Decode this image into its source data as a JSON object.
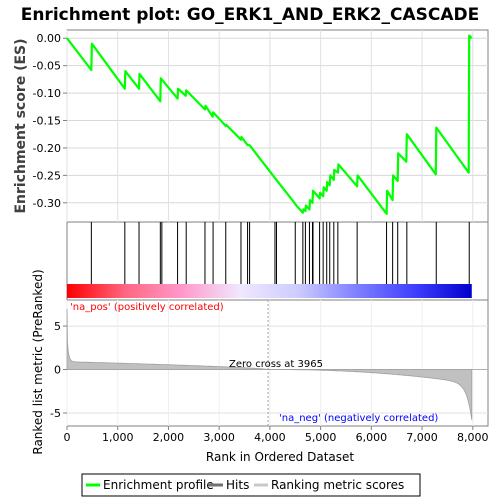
{
  "chart_data": {
    "type": "line",
    "title": "Enrichment plot: GO_ERK1_AND_ERK2_CASCADE",
    "panels": {
      "enrichment": {
        "ylabel": "Enrichment score (ES)",
        "ylim": [
          -0.335,
          0.015
        ],
        "yticks": [
          "0.00",
          "-0.05",
          "-0.10",
          "-0.15",
          "-0.20",
          "-0.25",
          "-0.30"
        ],
        "ytick_values": [
          0.0,
          -0.05,
          -0.1,
          -0.15,
          -0.2,
          -0.25,
          -0.3
        ],
        "series_color": "#00ff00",
        "points": [
          [
            0,
            0.0
          ],
          [
            480,
            -0.058
          ],
          [
            490,
            -0.01
          ],
          [
            1140,
            -0.092
          ],
          [
            1150,
            -0.06
          ],
          [
            1420,
            -0.092
          ],
          [
            1430,
            -0.065
          ],
          [
            1840,
            -0.115
          ],
          [
            1850,
            -0.073
          ],
          [
            2180,
            -0.11
          ],
          [
            2190,
            -0.092
          ],
          [
            2340,
            -0.105
          ],
          [
            2350,
            -0.095
          ],
          [
            2720,
            -0.13
          ],
          [
            2730,
            -0.123
          ],
          [
            2870,
            -0.143
          ],
          [
            2880,
            -0.135
          ],
          [
            3130,
            -0.16
          ],
          [
            3140,
            -0.158
          ],
          [
            3430,
            -0.185
          ],
          [
            3440,
            -0.18
          ],
          [
            3560,
            -0.195
          ],
          [
            3600,
            -0.195
          ],
          [
            4100,
            -0.255
          ],
          [
            4500,
            -0.302
          ],
          [
            4520,
            -0.305
          ],
          [
            4650,
            -0.318
          ],
          [
            4660,
            -0.312
          ],
          [
            4700,
            -0.315
          ],
          [
            4710,
            -0.305
          ],
          [
            4780,
            -0.312
          ],
          [
            4790,
            -0.295
          ],
          [
            4840,
            -0.3
          ],
          [
            4850,
            -0.278
          ],
          [
            4980,
            -0.292
          ],
          [
            4990,
            -0.282
          ],
          [
            5050,
            -0.288
          ],
          [
            5060,
            -0.272
          ],
          [
            5120,
            -0.278
          ],
          [
            5130,
            -0.262
          ],
          [
            5180,
            -0.268
          ],
          [
            5190,
            -0.25
          ],
          [
            5260,
            -0.258
          ],
          [
            5270,
            -0.24
          ],
          [
            5340,
            -0.245
          ],
          [
            5350,
            -0.23
          ],
          [
            5720,
            -0.27
          ],
          [
            5730,
            -0.25
          ],
          [
            6300,
            -0.32
          ],
          [
            6310,
            -0.278
          ],
          [
            6420,
            -0.295
          ],
          [
            6430,
            -0.25
          ],
          [
            6520,
            -0.26
          ],
          [
            6530,
            -0.21
          ],
          [
            6690,
            -0.225
          ],
          [
            6700,
            -0.175
          ],
          [
            7270,
            -0.248
          ],
          [
            7280,
            -0.163
          ],
          [
            7920,
            -0.245
          ],
          [
            7930,
            0.005
          ],
          [
            7980,
            0.0
          ]
        ]
      },
      "hits": {
        "positions": [
          480,
          1140,
          1420,
          1840,
          1870,
          2180,
          2350,
          2720,
          2880,
          3130,
          3430,
          3560,
          3600,
          4100,
          4130,
          4500,
          4650,
          4700,
          4780,
          4840,
          4850,
          4980,
          5050,
          5120,
          5180,
          5260,
          5340,
          5720,
          6300,
          6420,
          6520,
          6700,
          7280,
          7930
        ],
        "heat_gradient": [
          "#ff0000",
          "#ff6680",
          "#ff99cc",
          "#f0e8ff",
          "#ccccff",
          "#8080ff",
          "#4040ff",
          "#0000cc"
        ]
      },
      "ranked": {
        "ylabel": "Ranked list metric (PreRanked)",
        "ylim": [
          -6.5,
          8
        ],
        "yticks": [
          "5",
          "0",
          "-5"
        ],
        "ytick_values": [
          5,
          0,
          -5
        ],
        "pos_label": "'na_pos' (positively correlated)",
        "neg_label": "'na_neg' (negatively correlated)",
        "zero_cross_label": "Zero cross at 3965",
        "zero_cross": 3965
      }
    },
    "xlabel": "Rank in Ordered Dataset",
    "xlim": [
      0,
      8300
    ],
    "xticks": [
      "0",
      "1,000",
      "2,000",
      "3,000",
      "4,000",
      "5,000",
      "6,000",
      "7,000",
      "8,000"
    ],
    "xtick_values": [
      0,
      1000,
      2000,
      3000,
      4000,
      5000,
      6000,
      7000,
      8000
    ],
    "n_genes": 7980,
    "legend": {
      "items": [
        {
          "label": "Enrichment profile",
          "color": "#00ff00"
        },
        {
          "label": "Hits",
          "color": "#707070"
        },
        {
          "label": "Ranking metric scores",
          "color": "#c8c8c8"
        }
      ]
    }
  }
}
